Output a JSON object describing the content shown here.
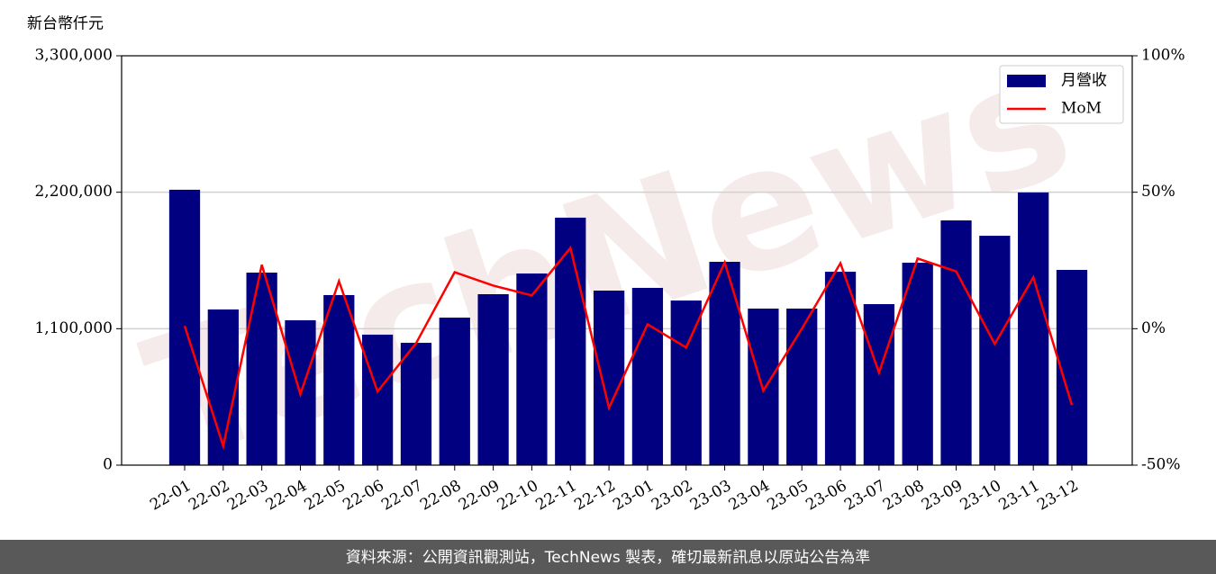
{
  "chart_data": {
    "type": "bar-line",
    "y_label": "新台幣仟元",
    "watermark": "TechNews",
    "footer": "資料來源：公開資訊觀測站，TechNews 製表，確切最新訊息以原站公告為準",
    "categories": [
      "22-01",
      "22-02",
      "22-03",
      "22-04",
      "22-05",
      "22-06",
      "22-07",
      "22-08",
      "22-09",
      "22-10",
      "22-11",
      "22-12",
      "23-01",
      "23-02",
      "23-03",
      "23-04",
      "23-05",
      "23-06",
      "23-07",
      "23-08",
      "23-09",
      "23-10",
      "23-11",
      "23-12"
    ],
    "series": [
      {
        "name": "月營收",
        "type": "bar",
        "color": "#000080",
        "values": [
          2220000,
          1255000,
          1552000,
          1168000,
          1371000,
          1052000,
          986000,
          1189000,
          1378000,
          1545000,
          1995000,
          1407000,
          1429000,
          1327000,
          1639000,
          1262000,
          1262000,
          1559000,
          1298000,
          1632000,
          1973000,
          1849000,
          2198000,
          1574000
        ]
      },
      {
        "name": "MoM",
        "type": "line",
        "axis": "y2",
        "color": "#ff0000",
        "values": [
          1,
          -43,
          23.4,
          -24,
          17.4,
          -23,
          -5.3,
          20.7,
          15.8,
          12.2,
          29.6,
          -29,
          1.6,
          -6.9,
          24.3,
          -22.7,
          0,
          24,
          -16.1,
          25.7,
          21,
          -5.6,
          18.8,
          -28
        ]
      }
    ],
    "ylim": [
      0,
      3300000
    ],
    "yticks": [
      0,
      {
        "value": 1100000,
        "label": "1,100,000"
      },
      {
        "value": 2200000,
        "label": "2,200,000"
      },
      {
        "value": 3300000,
        "label": "3,300,000"
      }
    ],
    "y2lim": [
      -50,
      100
    ],
    "y2ticks": [
      {
        "value": -50,
        "label": "-50%"
      },
      {
        "value": 0,
        "label": "0%"
      },
      {
        "value": 50,
        "label": "50%"
      },
      {
        "value": 100,
        "label": "100%"
      }
    ],
    "grid": true,
    "legend": "upper right"
  }
}
